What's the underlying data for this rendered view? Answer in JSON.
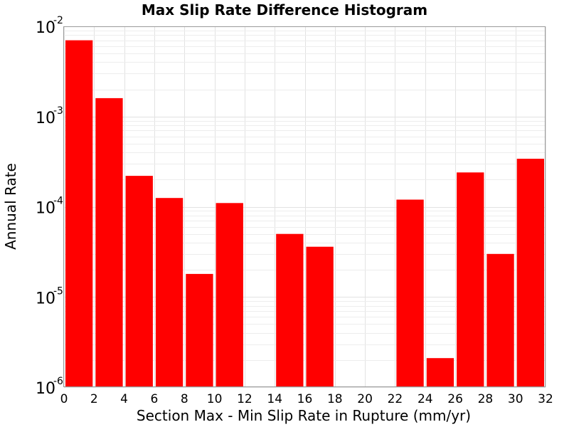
{
  "chart_data": {
    "type": "bar",
    "title": "Max Slip Rate Difference Histogram",
    "xlabel": "Section Max - Min Slip Rate in Rupture (mm/yr)",
    "ylabel": "Annual Rate",
    "yscale": "log",
    "ylim": [
      1e-06,
      0.01
    ],
    "xlim": [
      0,
      32
    ],
    "bin_width": 2,
    "x_ticks": [
      "0",
      "2",
      "4",
      "6",
      "8",
      "10",
      "12",
      "14",
      "16",
      "18",
      "20",
      "22",
      "24",
      "26",
      "28",
      "30",
      "32"
    ],
    "y_ticks": [
      {
        "base": "10",
        "exp": "-2",
        "value": 0.01
      },
      {
        "base": "10",
        "exp": "-3",
        "value": 0.001
      },
      {
        "base": "10",
        "exp": "-4",
        "value": 0.0001
      },
      {
        "base": "10",
        "exp": "-5",
        "value": 1e-05
      },
      {
        "base": "10",
        "exp": "-6",
        "value": 1e-06
      }
    ],
    "bins": [
      {
        "start": 0,
        "value": 0.007
      },
      {
        "start": 2,
        "value": 0.0016
      },
      {
        "start": 4,
        "value": 0.00022
      },
      {
        "start": 6,
        "value": 0.000125
      },
      {
        "start": 8,
        "value": 1.8e-05
      },
      {
        "start": 10,
        "value": 0.00011
      },
      {
        "start": 12,
        "value": 0
      },
      {
        "start": 14,
        "value": 5e-05
      },
      {
        "start": 16,
        "value": 3.6e-05
      },
      {
        "start": 18,
        "value": 0
      },
      {
        "start": 20,
        "value": 0
      },
      {
        "start": 22,
        "value": 0.00012
      },
      {
        "start": 24,
        "value": 2.1e-06
      },
      {
        "start": 26,
        "value": 0.00024
      },
      {
        "start": 28,
        "value": 3e-05
      },
      {
        "start": 30,
        "value": 0.00034
      }
    ],
    "grid": true,
    "legend": false,
    "bar_color": "#ff0000"
  }
}
